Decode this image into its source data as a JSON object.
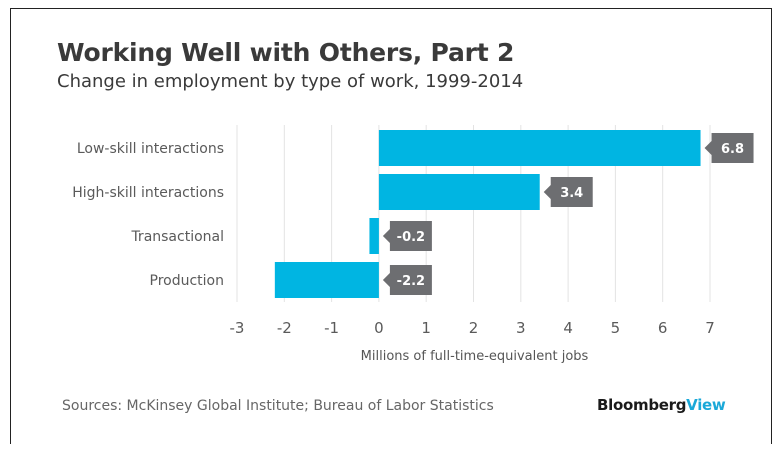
{
  "title": "Working Well with Others, Part 2",
  "subtitle": "Change in employment by type of work, 1999-2014",
  "source": "Sources: McKinsey Global Institute; Bureau of Labor Statistics",
  "logo": {
    "part1": "Bloomberg",
    "part2": "View"
  },
  "colors": {
    "bar": "#00b5e2",
    "label_bg": "#6d6e71",
    "grid": "#e3e3e3",
    "text": "#3a3a3a",
    "logo_accent": "#1aa8d8"
  },
  "chart_data": {
    "type": "bar",
    "orientation": "horizontal",
    "title": "Working Well with Others, Part 2",
    "subtitle": "Change in employment by type of work, 1999-2014",
    "categories": [
      "Low-skill interactions",
      "High-skill interactions",
      "Transactional",
      "Production"
    ],
    "values": [
      6.8,
      3.4,
      -0.2,
      -2.2
    ],
    "value_labels": [
      "6.8",
      "3.4",
      "-0.2",
      "-2.2"
    ],
    "xlabel": "Millions of full-time-equivalent jobs",
    "ylabel": "",
    "xlim": [
      -3,
      7
    ],
    "xticks": [
      -3,
      -2,
      -1,
      0,
      1,
      2,
      3,
      4,
      5,
      6,
      7
    ],
    "grid": true,
    "legend": "none"
  }
}
